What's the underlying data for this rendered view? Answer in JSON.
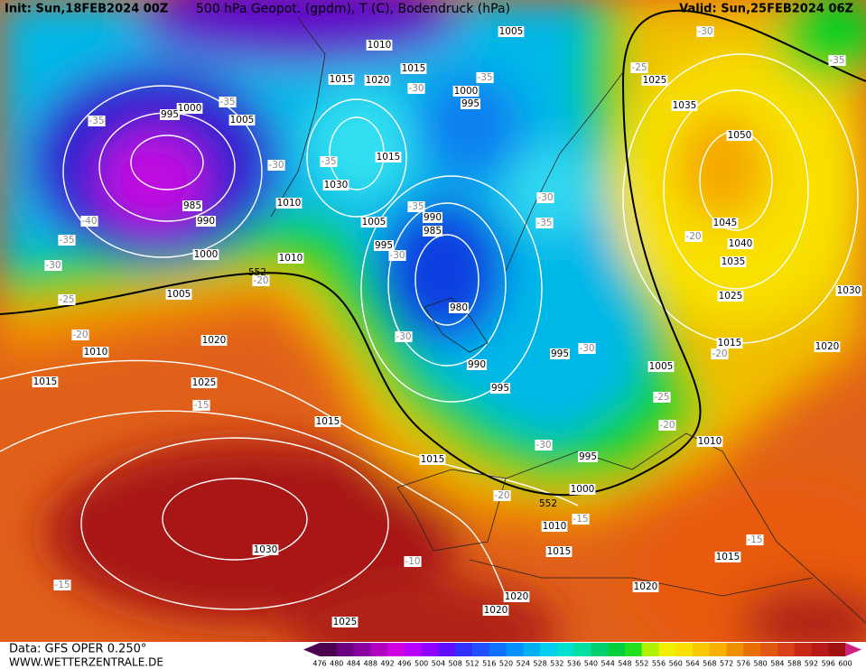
{
  "header": {
    "init": "Init: Sun,18FEB2024 00Z",
    "title": "500 hPa Geopot. (gpdm), T (C), Bodendruck (hPa)",
    "valid": "Valid: Sun,25FEB2024 06Z"
  },
  "footer": {
    "source": "Data: GFS OPER 0.250°",
    "website": "WWW.WETTERZENTRALE.DE"
  },
  "scale": {
    "labels": [
      476,
      480,
      484,
      488,
      492,
      496,
      500,
      504,
      508,
      512,
      516,
      520,
      524,
      528,
      532,
      536,
      540,
      544,
      548,
      552,
      556,
      560,
      564,
      568,
      572,
      576,
      580,
      584,
      588,
      592,
      596,
      600
    ],
    "colors": [
      "#4b0050",
      "#6a0080",
      "#8a00a0",
      "#b000c0",
      "#d000e0",
      "#b800ff",
      "#9000ff",
      "#6010ff",
      "#3030ff",
      "#2050ff",
      "#1070ff",
      "#0090ff",
      "#00b0f0",
      "#00d0f0",
      "#00e0d0",
      "#00e0a0",
      "#00d070",
      "#00d040",
      "#20e020",
      "#b0f000",
      "#f0f000",
      "#f8e000",
      "#f8c800",
      "#f8b000",
      "#f09000",
      "#e87000",
      "#e05810",
      "#d84018",
      "#c82818",
      "#b81818",
      "#a01010",
      "#d02080"
    ]
  },
  "pressure_labels": [
    1010,
    1005,
    1015,
    1015,
    1020,
    1000,
    995,
    1000,
    995,
    1005,
    1015,
    1030,
    1010,
    985,
    990,
    1005,
    990,
    985,
    995,
    1000,
    1010,
    1005,
    980,
    1020,
    1010,
    1015,
    1025,
    1015,
    1015,
    990,
    995,
    995,
    995,
    1000,
    1010,
    1015,
    1030,
    1025,
    1020,
    1020,
    1020,
    1015,
    1010,
    1005,
    1015,
    1020,
    1025,
    1030,
    1035,
    1040,
    1045,
    1050,
    1035,
    1025
  ],
  "temperature_labels": [
    -30,
    -35,
    -25,
    -35,
    -30,
    -35,
    -35,
    -30,
    -35,
    -35,
    -30,
    -35,
    -40,
    -35,
    -30,
    -25,
    -20,
    -20,
    -30,
    -30,
    -20,
    -30,
    -20,
    -25,
    -15,
    -20,
    -30,
    -20,
    -15,
    -15,
    -10,
    -15
  ],
  "height_labels": [
    552,
    552
  ]
}
